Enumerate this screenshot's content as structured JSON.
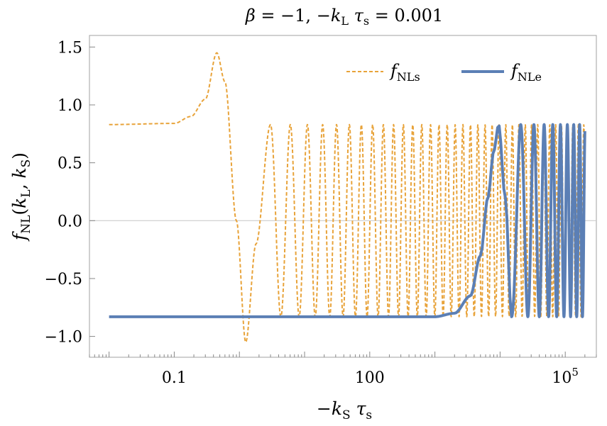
{
  "chart_data": {
    "type": "line",
    "title": "β = −1,   −k_L τ_s = 0.001",
    "title_parts": {
      "beta": "β",
      "beta_eq": " = −1,   −",
      "k": "k",
      "k_sub": "L",
      "tau": " τ",
      "tau_sub": "s",
      "value": " = 0.001"
    },
    "xlabel": "−k_S τ_s",
    "xlabel_parts": {
      "minus": "−",
      "k": "k",
      "k_sub": "S",
      "tau": " τ",
      "tau_sub": "s"
    },
    "ylabel": "f_NL(k_L, k_S)",
    "ylabel_parts": {
      "f": "f",
      "f_sub": "NL",
      "open": "(",
      "k1": "k",
      "k1_sub": "L",
      "comma": ", ",
      "k2": "k",
      "k2_sub": "S",
      "close": ")"
    },
    "x_scale": "log",
    "xlim": [
      0.005,
      300000
    ],
    "ylim": [
      -1.18,
      1.6
    ],
    "x_ticks": [
      {
        "value": 0.1,
        "label": "0.1"
      },
      {
        "value": 100,
        "label": "100"
      },
      {
        "value": 100000,
        "label": "10",
        "sup": "5"
      }
    ],
    "y_ticks": [
      {
        "value": 1.5,
        "label": "1.5"
      },
      {
        "value": 1.0,
        "label": "1.0"
      },
      {
        "value": 0.5,
        "label": "0.5"
      },
      {
        "value": 0.0,
        "label": "0.0"
      },
      {
        "value": -0.5,
        "label": "−0.5"
      },
      {
        "value": -1.0,
        "label": "−1.0"
      }
    ],
    "zero_line": true,
    "grid": false,
    "legend_position": "top-right",
    "series": [
      {
        "name": "f_NLs",
        "name_parts": {
          "f": "f",
          "sub": "NLs"
        },
        "color": "#E8A33A",
        "style": "dashed",
        "x_start": 0.01,
        "x_end": 200000,
        "plateau": 0.83,
        "feature_points": [
          {
            "x": 0.01,
            "y": 0.83
          },
          {
            "x": 0.1,
            "y": 0.84
          },
          {
            "x": 0.18,
            "y": 0.9
          },
          {
            "x": 0.3,
            "y": 1.05
          },
          {
            "x": 0.45,
            "y": 1.45
          },
          {
            "x": 0.6,
            "y": 1.2
          },
          {
            "x": 0.9,
            "y": 0.0
          },
          {
            "x": 1.25,
            "y": -1.05
          },
          {
            "x": 1.8,
            "y": -0.2
          },
          {
            "x": 3.0,
            "y": 0.83
          }
        ],
        "osc_amplitude": 0.83
      },
      {
        "name": "f_NLe",
        "name_parts": {
          "f": "f",
          "sub": "NLe"
        },
        "color": "#5B7FB5",
        "style": "solid",
        "x_start": 0.01,
        "x_end": 200000,
        "plateau": -0.83,
        "feature_points": [
          {
            "x": 0.01,
            "y": -0.83
          },
          {
            "x": 1000,
            "y": -0.83
          },
          {
            "x": 2000,
            "y": -0.8
          },
          {
            "x": 3500,
            "y": -0.65
          },
          {
            "x": 5000,
            "y": -0.3
          },
          {
            "x": 6500,
            "y": 0.2
          },
          {
            "x": 8000,
            "y": 0.6
          },
          {
            "x": 9500,
            "y": 0.83
          },
          {
            "x": 12000,
            "y": 0.2
          },
          {
            "x": 15000,
            "y": -0.83
          }
        ],
        "osc_amplitude": 0.83
      }
    ]
  }
}
